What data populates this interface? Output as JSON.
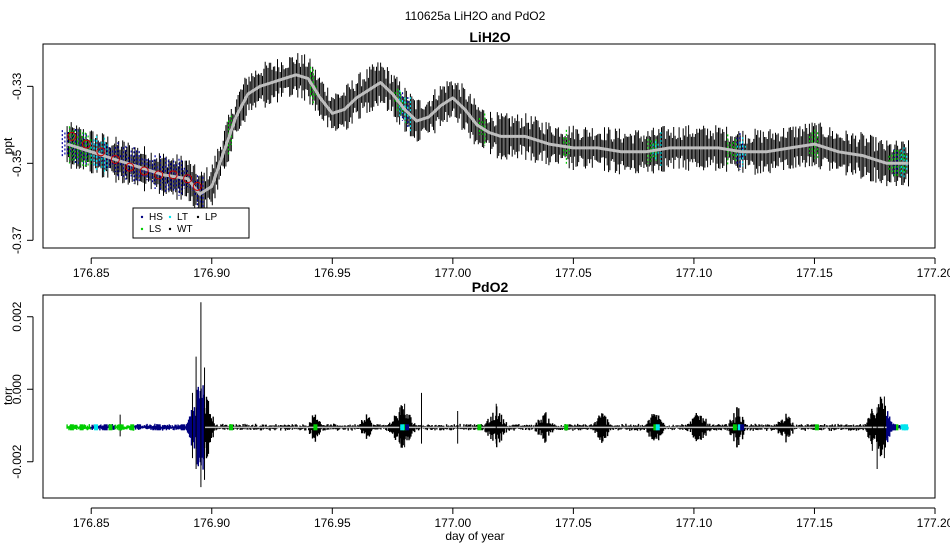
{
  "figure": {
    "title": "110625a   LiH2O and PdO2",
    "xlabel": "day of year"
  },
  "legend": {
    "entries": [
      {
        "label": "HS",
        "color": "#000080"
      },
      {
        "label": "LT",
        "color": "#00e5ee"
      },
      {
        "label": "LP",
        "color": "#000000"
      },
      {
        "label": "LS",
        "color": "#00cd00"
      },
      {
        "label": "WT",
        "color": "#000000"
      }
    ]
  },
  "chart_data": [
    {
      "type": "line",
      "title": "LiH2O",
      "xlabel": "",
      "ylabel": "ppt",
      "xlim": [
        176.83,
        177.2
      ],
      "ylim": [
        -0.372,
        -0.319
      ],
      "xticks": [
        176.85,
        176.9,
        176.95,
        177.0,
        177.05,
        177.1,
        177.15,
        177.2
      ],
      "xtick_labels": [
        "176.85",
        "176.90",
        "176.95",
        "177.00",
        "177.05",
        "177.10",
        "177.15",
        "177.20"
      ],
      "yticks": [
        -0.37,
        -0.35,
        -0.33
      ],
      "ytick_labels": [
        "-0.37",
        "-0.35",
        "-0.33"
      ],
      "grid": false,
      "legend_position": "bottom-left",
      "noise_amplitude": 0.0045,
      "series": [
        {
          "color": "#bebebe",
          "x": [
            176.84,
            176.85,
            176.86,
            176.87,
            176.88,
            176.89,
            176.895,
            176.9,
            176.905,
            176.91,
            176.915,
            176.92,
            176.925,
            176.93,
            176.935,
            176.94,
            176.945,
            176.95,
            176.955,
            176.96,
            176.965,
            176.97,
            176.975,
            176.98,
            176.985,
            176.99,
            176.995,
            177.0,
            177.005,
            177.01,
            177.015,
            177.02,
            177.03,
            177.04,
            177.05,
            177.06,
            177.07,
            177.08,
            177.09,
            177.1,
            177.11,
            177.12,
            177.13,
            177.14,
            177.15,
            177.16,
            177.17,
            177.175,
            177.18,
            177.185,
            177.189
          ],
          "values": [
            -0.345,
            -0.347,
            -0.349,
            -0.351,
            -0.353,
            -0.354,
            -0.358,
            -0.356,
            -0.347,
            -0.338,
            -0.332,
            -0.33,
            -0.329,
            -0.328,
            -0.327,
            -0.328,
            -0.333,
            -0.337,
            -0.336,
            -0.333,
            -0.331,
            -0.329,
            -0.332,
            -0.336,
            -0.339,
            -0.338,
            -0.335,
            -0.333,
            -0.336,
            -0.34,
            -0.342,
            -0.343,
            -0.343,
            -0.345,
            -0.346,
            -0.346,
            -0.347,
            -0.347,
            -0.346,
            -0.346,
            -0.346,
            -0.347,
            -0.347,
            -0.346,
            -0.345,
            -0.347,
            -0.348,
            -0.349,
            -0.35,
            -0.35,
            -0.35
          ]
        }
      ],
      "marker_groups": [
        {
          "name": "HS",
          "color": "#0000a0",
          "ranges": [
            [
              176.838,
              176.897
            ],
            [
              176.978,
              176.982
            ],
            [
              177.118,
              177.121
            ],
            [
              177.183,
              177.187
            ]
          ]
        },
        {
          "name": "LS",
          "color": "#00cd00",
          "ranges": [
            [
              176.841,
              176.85
            ],
            [
              176.907,
              176.909
            ],
            [
              176.941,
              176.944
            ],
            [
              176.976,
              176.981
            ],
            [
              177.011,
              177.014
            ],
            [
              177.046,
              177.049
            ],
            [
              177.081,
              177.085
            ],
            [
              177.114,
              177.118
            ],
            [
              177.148,
              177.152
            ],
            [
              177.181,
              177.188
            ]
          ]
        },
        {
          "name": "LT",
          "color": "#00e5ee",
          "ranges": [
            [
              176.85,
              176.857
            ],
            [
              176.978,
              176.983
            ],
            [
              177.083,
              177.087
            ],
            [
              177.118,
              177.122
            ],
            [
              177.186,
              177.189
            ]
          ]
        }
      ],
      "circle_markers": {
        "color": "#cc0000",
        "x": [
          176.842,
          176.848,
          176.854,
          176.86,
          176.866,
          176.872,
          176.878,
          176.884,
          176.89,
          176.894
        ],
        "values": [
          -0.343,
          -0.345,
          -0.347,
          -0.349,
          -0.351,
          -0.352,
          -0.353,
          -0.353,
          -0.354,
          -0.356
        ]
      }
    },
    {
      "type": "line",
      "title": "PdO2",
      "xlabel": "day of year",
      "ylabel": "torr",
      "xlim": [
        176.83,
        177.2
      ],
      "ylim": [
        -0.003,
        0.0026
      ],
      "xticks": [
        176.85,
        176.9,
        176.95,
        177.0,
        177.05,
        177.1,
        177.15,
        177.2
      ],
      "xtick_labels": [
        "176.85",
        "176.90",
        "176.95",
        "177.00",
        "177.05",
        "177.10",
        "177.15",
        "177.20"
      ],
      "yticks": [
        -0.002,
        0.0,
        0.002
      ],
      "ytick_labels": [
        "-0.002",
        "0.000",
        "0.002"
      ],
      "grid": false,
      "baseline": -0.00105,
      "segments": [
        {
          "color": "#00cd00",
          "x": [
            176.84,
            176.85
          ]
        },
        {
          "color": "#000080",
          "x": [
            176.85,
            176.86
          ]
        },
        {
          "color": "#00cd00",
          "x": [
            176.86,
            176.868
          ]
        },
        {
          "color": "#000080",
          "x": [
            176.868,
            176.897
          ]
        },
        {
          "color": "#000000",
          "x": [
            176.897,
            177.18
          ]
        },
        {
          "color": "#000080",
          "x": [
            177.18,
            177.186
          ]
        },
        {
          "color": "#00e5ee",
          "x": [
            177.186,
            177.189
          ]
        }
      ],
      "spikes": [
        {
          "x": 176.8955,
          "high": 0.0024,
          "low": -0.0027
        },
        {
          "x": 176.8935,
          "high": 0.0009,
          "low": -0.0022
        },
        {
          "x": 176.897,
          "high": 0.0006,
          "low": -0.0025
        },
        {
          "x": 176.892,
          "high": -0.0001,
          "low": -0.0019
        },
        {
          "x": 176.862,
          "high": -0.0007,
          "low": -0.0013
        },
        {
          "x": 176.98,
          "high": -0.0004,
          "low": -0.0016
        },
        {
          "x": 176.987,
          "high": -0.0001,
          "low": -0.0015
        },
        {
          "x": 176.978,
          "high": -0.0005,
          "low": -0.0015
        },
        {
          "x": 177.018,
          "high": -0.0004,
          "low": -0.0015
        },
        {
          "x": 177.002,
          "high": -0.0006,
          "low": -0.0015
        },
        {
          "x": 177.118,
          "high": -0.0005,
          "low": -0.0016
        },
        {
          "x": 177.176,
          "high": -0.0005,
          "low": -0.0022
        },
        {
          "x": 177.179,
          "high": -0.0002,
          "low": -0.0019
        },
        {
          "x": 177.174,
          "high": -0.0006,
          "low": -0.0017
        }
      ],
      "bursts": [
        {
          "x": 176.8955,
          "width": 0.006,
          "amp": 0.0011
        },
        {
          "x": 176.943,
          "width": 0.003,
          "amp": 0.00035
        },
        {
          "x": 176.964,
          "width": 0.003,
          "amp": 0.0003
        },
        {
          "x": 176.979,
          "width": 0.006,
          "amp": 0.00045
        },
        {
          "x": 177.018,
          "width": 0.005,
          "amp": 0.0004
        },
        {
          "x": 177.038,
          "width": 0.004,
          "amp": 0.0003
        },
        {
          "x": 177.062,
          "width": 0.004,
          "amp": 0.0003
        },
        {
          "x": 177.084,
          "width": 0.004,
          "amp": 0.00035
        },
        {
          "x": 177.102,
          "width": 0.005,
          "amp": 0.0003
        },
        {
          "x": 177.118,
          "width": 0.004,
          "amp": 0.0004
        },
        {
          "x": 177.138,
          "width": 0.004,
          "amp": 0.0003
        },
        {
          "x": 177.177,
          "width": 0.006,
          "amp": 0.0007
        }
      ],
      "colored_dots": [
        {
          "color": "#00cd00",
          "x": [
            176.842,
            176.846,
            176.858,
            176.862,
            176.867,
            176.908,
            176.943,
            176.98,
            177.011,
            177.047,
            177.084,
            177.117,
            177.151,
            177.184
          ]
        },
        {
          "color": "#00e5ee",
          "x": [
            176.852,
            176.979,
            177.085,
            177.119,
            177.187,
            177.188
          ]
        },
        {
          "color": "#000080",
          "x": [
            176.856,
            176.878,
            176.888,
            176.981,
            177.12,
            177.183
          ]
        }
      ]
    }
  ]
}
